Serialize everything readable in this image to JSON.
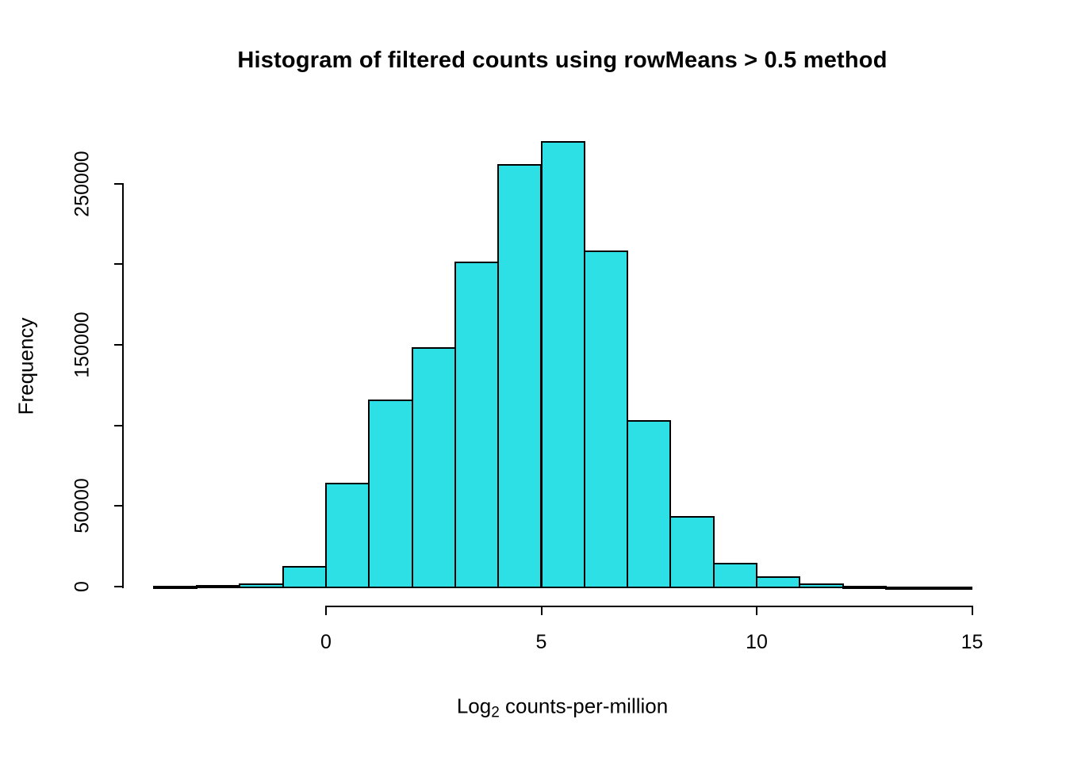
{
  "figure": {
    "title": "Histogram of filtered counts using rowMeans > 0.5 method",
    "x_axis": {
      "label_main": "Log",
      "label_subscript": "2",
      "label_rest": " counts-per-million",
      "tick_labels": [
        "0",
        "5",
        "10",
        "15"
      ]
    },
    "y_axis": {
      "label": "Frequency",
      "tick_labels": [
        "0",
        "50000",
        "",
        "150000",
        "",
        "250000"
      ]
    }
  },
  "chart_data": {
    "type": "bar",
    "subtype": "histogram",
    "title": "Histogram of filtered counts using rowMeans > 0.5 method",
    "xlabel": "Log2 counts-per-million",
    "ylabel": "Frequency",
    "bin_width": 1,
    "bin_edges": [
      -4,
      -3,
      -2,
      -1,
      0,
      1,
      2,
      3,
      4,
      5,
      6,
      7,
      8,
      9,
      10,
      11,
      12,
      13,
      14,
      15
    ],
    "counts": [
      300,
      800,
      2000,
      12800,
      64500,
      116000,
      148500,
      201700,
      262300,
      276300,
      208600,
      103300,
      44000,
      14800,
      6500,
      1800,
      700,
      250,
      100
    ],
    "x_ticks": [
      0,
      5,
      10,
      15
    ],
    "y_ticks": [
      0,
      50000,
      100000,
      150000,
      200000,
      250000
    ],
    "y_labeled_ticks": [
      0,
      50000,
      150000,
      250000
    ],
    "xlim": [
      -4,
      15
    ],
    "ylim": [
      0,
      280000
    ],
    "grid": false,
    "legend": false,
    "bar_fill": "#2CE0E5",
    "bar_stroke": "#000000",
    "axis_color": "#000000"
  }
}
